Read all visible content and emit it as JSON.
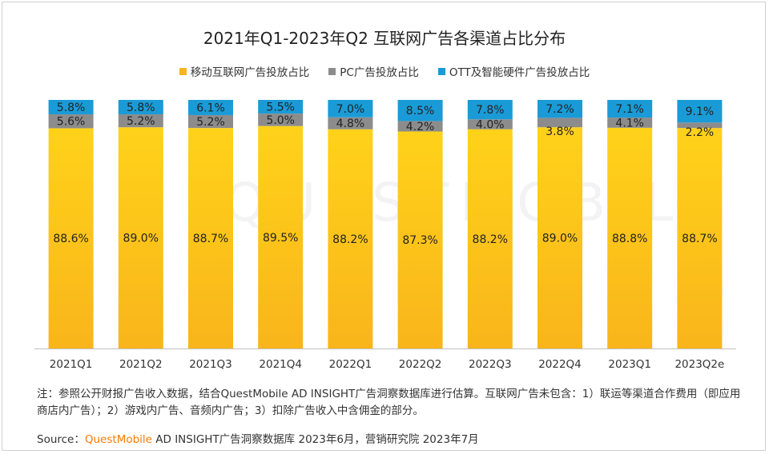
{
  "chart_data": {
    "type": "bar",
    "stacked": true,
    "title": "2021年Q1-2023年Q2 互联网广告各渠道占比分布",
    "categories": [
      "2021Q1",
      "2021Q2",
      "2021Q3",
      "2021Q4",
      "2022Q1",
      "2022Q2",
      "2022Q3",
      "2022Q4",
      "2023Q1",
      "2023Q2e"
    ],
    "series": [
      {
        "name": "移动互联网广告投放占比",
        "color": "#f9b51b",
        "values": [
          88.6,
          89.0,
          88.7,
          89.5,
          88.2,
          87.3,
          88.2,
          89.0,
          88.8,
          88.7
        ],
        "labels": [
          "88.6%",
          "89.0%",
          "88.7%",
          "89.5%",
          "88.2%",
          "87.3%",
          "88.2%",
          "89.0%",
          "88.8%",
          "88.7%"
        ]
      },
      {
        "name": "PC广告投放占比",
        "color": "#8c8c8c",
        "values": [
          5.6,
          5.2,
          5.2,
          5.0,
          4.8,
          4.2,
          4.0,
          3.8,
          4.1,
          2.2
        ],
        "labels": [
          "5.6%",
          "5.2%",
          "5.2%",
          "5.0%",
          "4.8%",
          "4.2%",
          "4.0%",
          "3.8%",
          "4.1%",
          "2.2%"
        ]
      },
      {
        "name": "OTT及智能硬件广告投放占比",
        "color": "#1a9bd7",
        "values": [
          5.8,
          5.8,
          6.1,
          5.5,
          7.0,
          8.5,
          7.8,
          7.2,
          7.1,
          9.1
        ],
        "labels": [
          "5.8%",
          "5.8%",
          "6.1%",
          "5.5%",
          "7.0%",
          "8.5%",
          "7.8%",
          "7.2%",
          "7.1%",
          "9.1%"
        ]
      }
    ],
    "ylim": [
      0,
      100
    ],
    "xlabel": "",
    "ylabel": "",
    "legend_position": "top"
  },
  "watermark": "QUESTMOBILE",
  "note": "注：参照公开财报广告收入数据，结合QuestMobile AD INSIGHT广告洞察数据库进行估算。互联网广告未包含：1）联运等渠道合作费用（即应用商店内广告）；2）游戏内广告、音频内广告；3）扣除广告收入中含佣金的部分。",
  "source": {
    "prefix": "Source：",
    "brand": "QuestMobile",
    "text": " AD INSIGHT广告洞察数据库 2023年6月，营销研究院 2023年7月"
  }
}
